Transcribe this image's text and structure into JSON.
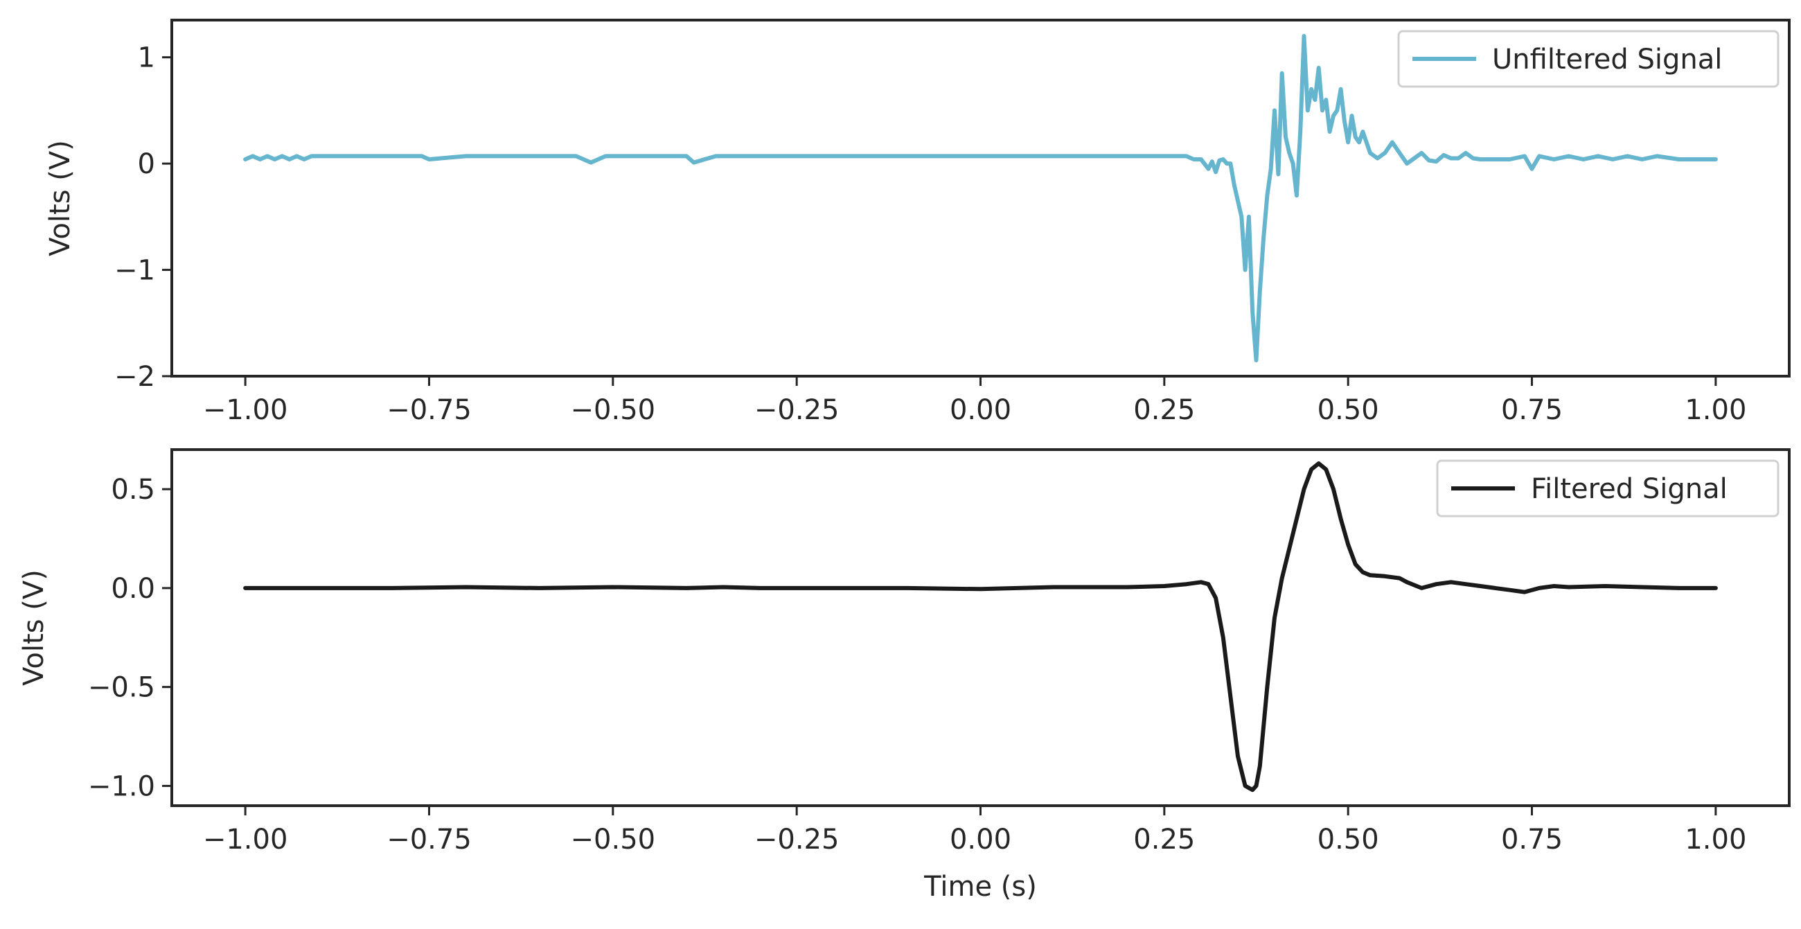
{
  "chart_data": [
    {
      "type": "line",
      "title": "",
      "xlabel": "",
      "ylabel": "Volts (V)",
      "xlim": [
        -1.1,
        1.1
      ],
      "ylim": [
        -2.0,
        1.35
      ],
      "xticks": [
        -1.0,
        -0.75,
        -0.5,
        -0.25,
        0.0,
        0.25,
        0.5,
        0.75,
        1.0
      ],
      "xtick_labels": [
        "−1.00",
        "−0.75",
        "−0.50",
        "−0.25",
        "0.00",
        "0.25",
        "0.50",
        "0.75",
        "1.00"
      ],
      "yticks": [
        1,
        0,
        -1,
        -2
      ],
      "ytick_labels": [
        "1",
        "0",
        "−1",
        "−2"
      ],
      "legend": {
        "position": "upper right",
        "entries": [
          "Unfiltered Signal"
        ]
      },
      "grid": false,
      "series": [
        {
          "name": "Unfiltered Signal",
          "color": "#66b5cf",
          "x": [
            -1.0,
            -0.99,
            -0.98,
            -0.97,
            -0.96,
            -0.95,
            -0.94,
            -0.93,
            -0.92,
            -0.91,
            -0.8,
            -0.76,
            -0.75,
            -0.7,
            -0.66,
            -0.65,
            -0.61,
            -0.6,
            -0.59,
            -0.55,
            -0.53,
            -0.51,
            -0.5,
            -0.46,
            -0.44,
            -0.42,
            -0.4,
            -0.39,
            -0.36,
            -0.35,
            -0.34,
            -0.31,
            -0.19,
            -0.17,
            -0.15,
            -0.13,
            -0.09,
            -0.02,
            0.0,
            0.01,
            0.02,
            0.05,
            0.07,
            0.12,
            0.14,
            0.15,
            0.16,
            0.18,
            0.19,
            0.21,
            0.24,
            0.28,
            0.29,
            0.3,
            0.31,
            0.315,
            0.32,
            0.325,
            0.33,
            0.335,
            0.34,
            0.345,
            0.35,
            0.355,
            0.36,
            0.365,
            0.37,
            0.375,
            0.38,
            0.385,
            0.39,
            0.395,
            0.4,
            0.405,
            0.41,
            0.415,
            0.42,
            0.425,
            0.43,
            0.435,
            0.44,
            0.445,
            0.45,
            0.455,
            0.46,
            0.465,
            0.47,
            0.475,
            0.48,
            0.485,
            0.49,
            0.495,
            0.5,
            0.505,
            0.51,
            0.515,
            0.52,
            0.53,
            0.54,
            0.55,
            0.56,
            0.57,
            0.58,
            0.59,
            0.6,
            0.61,
            0.62,
            0.63,
            0.64,
            0.65,
            0.66,
            0.67,
            0.68,
            0.7,
            0.72,
            0.74,
            0.75,
            0.76,
            0.78,
            0.8,
            0.82,
            0.84,
            0.86,
            0.88,
            0.9,
            0.92,
            0.95,
            1.0
          ],
          "y": [
            0.04,
            0.07,
            0.04,
            0.07,
            0.04,
            0.07,
            0.04,
            0.07,
            0.04,
            0.07,
            0.07,
            0.07,
            0.04,
            0.07,
            0.07,
            0.07,
            0.07,
            0.07,
            0.07,
            0.07,
            0.01,
            0.07,
            0.07,
            0.07,
            0.07,
            0.07,
            0.07,
            0.01,
            0.07,
            0.07,
            0.07,
            0.07,
            0.07,
            0.07,
            0.07,
            0.07,
            0.07,
            0.07,
            0.07,
            0.07,
            0.07,
            0.07,
            0.07,
            0.07,
            0.07,
            0.07,
            0.07,
            0.07,
            0.07,
            0.07,
            0.07,
            0.07,
            0.04,
            0.04,
            -0.05,
            0.02,
            -0.08,
            0.03,
            0.04,
            0.0,
            0.0,
            -0.2,
            -0.35,
            -0.5,
            -1.0,
            -0.5,
            -1.4,
            -1.85,
            -1.2,
            -0.7,
            -0.3,
            -0.05,
            0.5,
            -0.1,
            0.85,
            0.25,
            0.1,
            0.0,
            -0.3,
            0.3,
            1.2,
            0.5,
            0.7,
            0.6,
            0.9,
            0.5,
            0.6,
            0.3,
            0.45,
            0.5,
            0.7,
            0.4,
            0.2,
            0.45,
            0.25,
            0.2,
            0.3,
            0.1,
            0.05,
            0.1,
            0.2,
            0.1,
            0.0,
            0.05,
            0.1,
            0.03,
            0.02,
            0.08,
            0.05,
            0.05,
            0.1,
            0.05,
            0.04,
            0.04,
            0.04,
            0.07,
            -0.05,
            0.07,
            0.04,
            0.07,
            0.04,
            0.07,
            0.04,
            0.07,
            0.04,
            0.07,
            0.04,
            0.04
          ]
        }
      ]
    },
    {
      "type": "line",
      "title": "",
      "xlabel": "Time (s)",
      "ylabel": "Volts (V)",
      "xlim": [
        -1.1,
        1.1
      ],
      "ylim": [
        -1.1,
        0.7
      ],
      "xticks": [
        -1.0,
        -0.75,
        -0.5,
        -0.25,
        0.0,
        0.25,
        0.5,
        0.75,
        1.0
      ],
      "xtick_labels": [
        "−1.00",
        "−0.75",
        "−0.50",
        "−0.25",
        "0.00",
        "0.25",
        "0.50",
        "0.75",
        "1.00"
      ],
      "yticks": [
        0.5,
        0.0,
        -0.5,
        -1.0
      ],
      "ytick_labels": [
        "0.5",
        "0.0",
        "−0.5",
        "−1.0"
      ],
      "legend": {
        "position": "upper right",
        "entries": [
          "Filtered Signal"
        ]
      },
      "grid": false,
      "series": [
        {
          "name": "Filtered Signal",
          "color": "#1a1a1a",
          "x": [
            -1.0,
            -0.9,
            -0.8,
            -0.7,
            -0.6,
            -0.5,
            -0.4,
            -0.35,
            -0.3,
            -0.2,
            -0.1,
            0.0,
            0.1,
            0.2,
            0.25,
            0.28,
            0.3,
            0.31,
            0.32,
            0.33,
            0.34,
            0.35,
            0.36,
            0.37,
            0.375,
            0.38,
            0.39,
            0.4,
            0.41,
            0.42,
            0.43,
            0.44,
            0.45,
            0.46,
            0.47,
            0.48,
            0.49,
            0.5,
            0.51,
            0.52,
            0.53,
            0.55,
            0.57,
            0.58,
            0.6,
            0.62,
            0.64,
            0.66,
            0.68,
            0.7,
            0.72,
            0.74,
            0.76,
            0.78,
            0.8,
            0.85,
            0.9,
            0.95,
            1.0
          ],
          "y": [
            0.0,
            0.0,
            0.0,
            0.005,
            0.0,
            0.005,
            0.0,
            0.005,
            0.0,
            0.0,
            0.0,
            -0.005,
            0.005,
            0.005,
            0.01,
            0.02,
            0.03,
            0.02,
            -0.05,
            -0.25,
            -0.55,
            -0.85,
            -1.0,
            -1.02,
            -1.0,
            -0.9,
            -0.5,
            -0.15,
            0.05,
            0.2,
            0.35,
            0.5,
            0.6,
            0.63,
            0.6,
            0.5,
            0.35,
            0.22,
            0.12,
            0.08,
            0.065,
            0.06,
            0.05,
            0.03,
            0.0,
            0.02,
            0.03,
            0.02,
            0.01,
            0.0,
            -0.01,
            -0.02,
            0.0,
            0.01,
            0.005,
            0.01,
            0.005,
            0.0,
            0.0
          ]
        }
      ]
    }
  ]
}
